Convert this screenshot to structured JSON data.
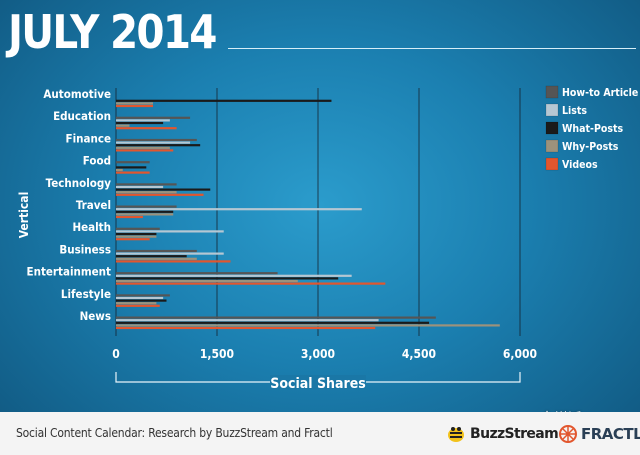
{
  "title": "JULY 2014",
  "footer_text": "Social Content Calendar: Research by BuzzStream and Fractl",
  "logos": {
    "buzzstream": "BuzzStream",
    "fractl": "FRACTL"
  },
  "watermark": "全媒派",
  "chart_data": {
    "type": "bar",
    "orientation": "horizontal",
    "xlabel": "Social Shares",
    "ylabel": "Vertical",
    "xlim": [
      0,
      6000
    ],
    "x_ticks": [
      0,
      1500,
      3000,
      4500,
      6000
    ],
    "x_tick_labels": [
      "0",
      "1,500",
      "3,000",
      "4,500",
      "6,000"
    ],
    "grid": "vertical",
    "legend_position": "top-right",
    "categories": [
      "Automotive",
      "Education",
      "Finance",
      "Food",
      "Technology",
      "Travel",
      "Health",
      "Business",
      "Entertainment",
      "Lifestyle",
      "News"
    ],
    "series": [
      {
        "name": "How-to Article",
        "color": "#555555",
        "values": [
          0,
          1100,
          1200,
          500,
          900,
          900,
          650,
          1200,
          2400,
          800,
          4750
        ]
      },
      {
        "name": "Lists",
        "color": "#b5c7d3",
        "values": [
          0,
          800,
          1100,
          0,
          700,
          3650,
          1600,
          1600,
          3500,
          700,
          3900
        ]
      },
      {
        "name": "What-Posts",
        "color": "#1a1a1a",
        "values": [
          3200,
          700,
          1250,
          450,
          1400,
          850,
          600,
          1050,
          3300,
          750,
          4650
        ]
      },
      {
        "name": "Why-Posts",
        "color": "#9c927c",
        "values": [
          550,
          200,
          800,
          100,
          900,
          850,
          600,
          1200,
          2700,
          600,
          5700
        ]
      },
      {
        "name": "Videos",
        "color": "#e2562e",
        "values": [
          550,
          900,
          850,
          500,
          1300,
          400,
          500,
          1700,
          4000,
          650,
          3850
        ]
      }
    ]
  }
}
